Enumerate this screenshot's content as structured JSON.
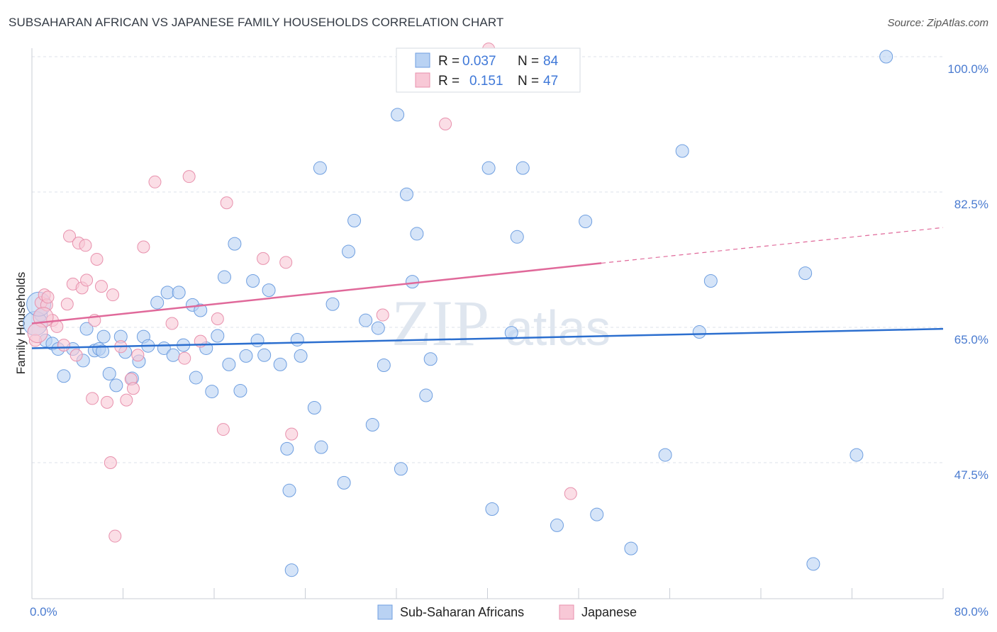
{
  "title": "SUBSAHARAN AFRICAN VS JAPANESE FAMILY HOUSEHOLDS CORRELATION CHART",
  "source": "Source: ZipAtlas.com",
  "watermark": {
    "zip": "ZIP",
    "atlas": "atlas"
  },
  "colors": {
    "blue_fill": "#b9d2f3",
    "blue_stroke": "#6f9fe0",
    "blue_line": "#2c6fcf",
    "pink_fill": "#f8c8d6",
    "pink_stroke": "#e891ad",
    "pink_line": "#e0699a",
    "axis_text": "#4a7bd0",
    "grid": "#dde2ea"
  },
  "legend_top": {
    "rows": [
      {
        "r_label": "R =",
        "r_value": "0.037",
        "n_label": "N =",
        "n_value": "84",
        "series": "blue"
      },
      {
        "r_label": "R =",
        "r_value": "0.151",
        "n_label": "N =",
        "n_value": "47",
        "series": "pink"
      }
    ]
  },
  "chart_data": {
    "type": "scatter",
    "ylabel": "Family Households",
    "xlim": [
      0,
      80
    ],
    "ylim": [
      30,
      100
    ],
    "x_tick_labels": [
      "0.0%",
      "80.0%"
    ],
    "y_ticks": [
      47.5,
      65.0,
      82.5,
      100.0
    ],
    "y_tick_labels": [
      "47.5%",
      "65.0%",
      "82.5%",
      "100.0%"
    ],
    "grid": true,
    "legend_position": "bottom-center",
    "series": [
      {
        "name": "Sub-Saharan Africans",
        "color": "blue",
        "trend": {
          "x": [
            0,
            80
          ],
          "y": [
            62.3,
            64.8
          ]
        },
        "points": [
          [
            0.8,
            66.6
          ],
          [
            1.2,
            63.3
          ],
          [
            1.8,
            62.9
          ],
          [
            2.3,
            62.2
          ],
          [
            2.8,
            58.7
          ],
          [
            3.6,
            62.2
          ],
          [
            4.5,
            60.7
          ],
          [
            4.8,
            64.8
          ],
          [
            5.5,
            62.0
          ],
          [
            5.9,
            62.2
          ],
          [
            6.2,
            61.9
          ],
          [
            6.3,
            63.8
          ],
          [
            6.8,
            59.0
          ],
          [
            7.4,
            57.5
          ],
          [
            7.8,
            63.8
          ],
          [
            8.2,
            61.8
          ],
          [
            8.8,
            58.4
          ],
          [
            9.4,
            60.6
          ],
          [
            9.8,
            63.8
          ],
          [
            10.2,
            62.6
          ],
          [
            11.0,
            68.2
          ],
          [
            11.6,
            62.3
          ],
          [
            11.9,
            69.5
          ],
          [
            12.4,
            61.4
          ],
          [
            12.9,
            69.5
          ],
          [
            13.3,
            62.7
          ],
          [
            14.1,
            67.9
          ],
          [
            14.4,
            58.5
          ],
          [
            14.8,
            67.2
          ],
          [
            15.3,
            62.3
          ],
          [
            15.8,
            56.7
          ],
          [
            16.3,
            63.9
          ],
          [
            16.9,
            71.5
          ],
          [
            17.3,
            60.2
          ],
          [
            17.8,
            75.8
          ],
          [
            18.3,
            56.8
          ],
          [
            18.8,
            61.3
          ],
          [
            19.4,
            71.0
          ],
          [
            19.8,
            63.3
          ],
          [
            20.4,
            61.4
          ],
          [
            20.8,
            69.8
          ],
          [
            21.8,
            60.2
          ],
          [
            22.4,
            49.3
          ],
          [
            22.6,
            43.9
          ],
          [
            22.8,
            33.6
          ],
          [
            23.3,
            63.4
          ],
          [
            23.6,
            61.3
          ],
          [
            24.8,
            54.6
          ],
          [
            25.3,
            85.6
          ],
          [
            25.4,
            49.5
          ],
          [
            26.4,
            68.0
          ],
          [
            27.4,
            44.9
          ],
          [
            27.8,
            74.8
          ],
          [
            28.3,
            78.8
          ],
          [
            29.3,
            65.9
          ],
          [
            29.9,
            52.4
          ],
          [
            30.4,
            64.9
          ],
          [
            30.9,
            60.1
          ],
          [
            32.1,
            92.5
          ],
          [
            32.4,
            46.7
          ],
          [
            32.9,
            82.2
          ],
          [
            33.4,
            70.9
          ],
          [
            33.8,
            77.1
          ],
          [
            34.6,
            56.2
          ],
          [
            35.0,
            60.9
          ],
          [
            40.1,
            85.6
          ],
          [
            40.4,
            41.5
          ],
          [
            42.1,
            64.3
          ],
          [
            42.6,
            76.7
          ],
          [
            43.1,
            85.6
          ],
          [
            46.1,
            39.4
          ],
          [
            48.6,
            78.7
          ],
          [
            49.6,
            40.8
          ],
          [
            52.6,
            36.4
          ],
          [
            55.6,
            48.5
          ],
          [
            57.1,
            87.8
          ],
          [
            58.6,
            64.4
          ],
          [
            59.6,
            71.0
          ],
          [
            67.9,
            72.0
          ],
          [
            68.6,
            34.4
          ],
          [
            72.4,
            48.5
          ],
          [
            75.0,
            100.0
          ],
          [
            0.3,
            65.5
          ],
          [
            0.6,
            68.0
          ]
        ]
      },
      {
        "name": "Japanese",
        "color": "pink",
        "trend": {
          "x": [
            0,
            50
          ],
          "y": [
            65.5,
            73.3
          ],
          "extended": {
            "x": [
              50,
              80
            ],
            "y": [
              73.3,
              77.9
            ]
          }
        },
        "points": [
          [
            0.3,
            63.3
          ],
          [
            0.8,
            68.2
          ],
          [
            1.1,
            69.2
          ],
          [
            1.3,
            67.9
          ],
          [
            1.4,
            68.9
          ],
          [
            1.8,
            65.9
          ],
          [
            2.2,
            65.1
          ],
          [
            2.8,
            62.7
          ],
          [
            3.1,
            68.0
          ],
          [
            3.3,
            76.8
          ],
          [
            3.6,
            70.6
          ],
          [
            3.9,
            61.4
          ],
          [
            4.1,
            75.9
          ],
          [
            4.4,
            70.1
          ],
          [
            4.7,
            75.6
          ],
          [
            4.8,
            71.1
          ],
          [
            5.3,
            55.8
          ],
          [
            5.5,
            65.9
          ],
          [
            5.7,
            73.8
          ],
          [
            6.1,
            70.3
          ],
          [
            6.6,
            55.3
          ],
          [
            6.9,
            47.5
          ],
          [
            7.1,
            69.2
          ],
          [
            7.3,
            38.0
          ],
          [
            7.8,
            62.5
          ],
          [
            8.3,
            55.6
          ],
          [
            8.7,
            58.3
          ],
          [
            8.9,
            57.1
          ],
          [
            9.3,
            61.4
          ],
          [
            9.8,
            75.4
          ],
          [
            10.8,
            83.8
          ],
          [
            12.3,
            65.5
          ],
          [
            13.4,
            61.0
          ],
          [
            13.8,
            84.5
          ],
          [
            14.8,
            63.2
          ],
          [
            16.3,
            66.1
          ],
          [
            16.8,
            51.8
          ],
          [
            17.1,
            81.1
          ],
          [
            20.3,
            73.9
          ],
          [
            22.3,
            73.4
          ],
          [
            22.8,
            51.2
          ],
          [
            30.8,
            66.6
          ],
          [
            36.3,
            91.3
          ],
          [
            40.1,
            101.0
          ],
          [
            47.3,
            43.5
          ],
          [
            1.0,
            66.3
          ],
          [
            0.5,
            64.3
          ]
        ]
      }
    ]
  },
  "legend_bottom": [
    {
      "label": "Sub-Saharan Africans",
      "color": "blue"
    },
    {
      "label": "Japanese",
      "color": "pink"
    }
  ]
}
